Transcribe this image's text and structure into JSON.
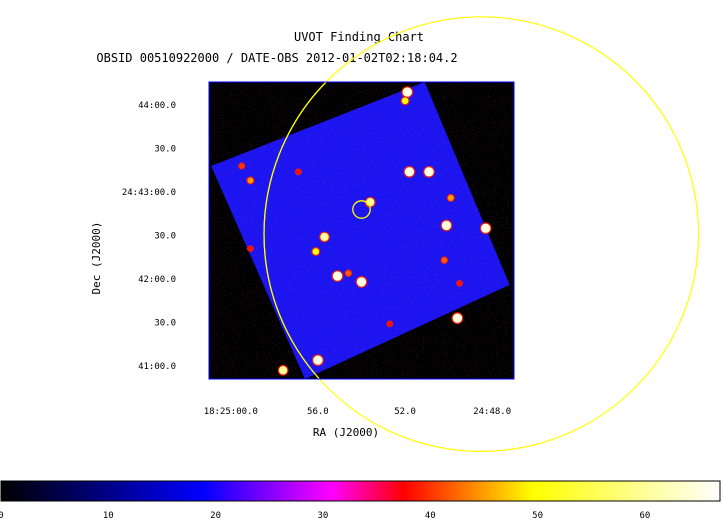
{
  "chart_data": {
    "type": "heatmap",
    "title": "UVOT Finding Chart",
    "subtitle": "OBSID 00510922000 / DATE-OBS 2012-01-02T02:18:04.2",
    "xlabel": "RA (J2000)",
    "ylabel": "Dec (J2000)",
    "x_ticks": [
      {
        "label": "18:25:00.0",
        "ra_sec": 60
      },
      {
        "label": "56.0",
        "ra_sec": 56
      },
      {
        "label": "52.0",
        "ra_sec": 52
      },
      {
        "label": "24:48.0",
        "ra_sec": 48
      }
    ],
    "y_ticks": [
      {
        "label": "44:00.0",
        "dec_sec": 240
      },
      {
        "label": "30.0",
        "dec_sec": 210
      },
      {
        "label": "24:43:00.0",
        "dec_sec": 180
      },
      {
        "label": "30.0",
        "dec_sec": 150
      },
      {
        "label": "42:00.0",
        "dec_sec": 120
      },
      {
        "label": "30.0",
        "dec_sec": 90
      },
      {
        "label": "41:00.0",
        "dec_sec": 60
      }
    ],
    "x_range_ra_sec": [
      61,
      47
    ],
    "y_range_dec_sec": [
      51,
      256
    ],
    "image_corners": [
      {
        "ra_sec": 60.9,
        "dec_sec": 198
      },
      {
        "ra_sec": 51.1,
        "dec_sec": 256
      },
      {
        "ra_sec": 47.2,
        "dec_sec": 116
      },
      {
        "ra_sec": 56.6,
        "dec_sec": 51
      }
    ],
    "sources": [
      {
        "ra_sec": 51.9,
        "dec_sec": 249,
        "brightness": 65
      },
      {
        "ra_sec": 52.0,
        "dec_sec": 243,
        "brightness": 50
      },
      {
        "ra_sec": 59.5,
        "dec_sec": 198,
        "brightness": 40
      },
      {
        "ra_sec": 59.1,
        "dec_sec": 188,
        "brightness": 45
      },
      {
        "ra_sec": 56.9,
        "dec_sec": 194,
        "brightness": 38
      },
      {
        "ra_sec": 51.8,
        "dec_sec": 194,
        "brightness": 65
      },
      {
        "ra_sec": 50.9,
        "dec_sec": 194,
        "brightness": 65
      },
      {
        "ra_sec": 49.9,
        "dec_sec": 176,
        "brightness": 45
      },
      {
        "ra_sec": 53.6,
        "dec_sec": 173,
        "brightness": 60
      },
      {
        "ra_sec": 50.1,
        "dec_sec": 157,
        "brightness": 65
      },
      {
        "ra_sec": 48.3,
        "dec_sec": 155,
        "brightness": 65
      },
      {
        "ra_sec": 55.7,
        "dec_sec": 149,
        "brightness": 60
      },
      {
        "ra_sec": 59.1,
        "dec_sec": 141,
        "brightness": 38
      },
      {
        "ra_sec": 56.1,
        "dec_sec": 139,
        "brightness": 50
      },
      {
        "ra_sec": 50.2,
        "dec_sec": 133,
        "brightness": 42
      },
      {
        "ra_sec": 55.1,
        "dec_sec": 122,
        "brightness": 65
      },
      {
        "ra_sec": 54.6,
        "dec_sec": 124,
        "brightness": 42
      },
      {
        "ra_sec": 54.0,
        "dec_sec": 118,
        "brightness": 65
      },
      {
        "ra_sec": 49.5,
        "dec_sec": 117,
        "brightness": 38
      },
      {
        "ra_sec": 49.6,
        "dec_sec": 93,
        "brightness": 65
      },
      {
        "ra_sec": 52.7,
        "dec_sec": 89,
        "brightness": 38
      },
      {
        "ra_sec": 56.0,
        "dec_sec": 64,
        "brightness": 65
      },
      {
        "ra_sec": 57.6,
        "dec_sec": 57,
        "brightness": 60
      }
    ],
    "target_circle": {
      "ra_sec": 54.0,
      "dec_sec": 168,
      "radius_arcsec": 5
    },
    "error_circle": {
      "ra_sec": 48.5,
      "dec_sec": 151,
      "radius_arcsec": 150
    },
    "colorbar": {
      "min": 0,
      "max": 67,
      "ticks": [
        0,
        10,
        20,
        30,
        40,
        50,
        60
      ]
    },
    "colors": {
      "background": "#000000",
      "frame": "#0000ff",
      "field": "#1a14f0",
      "circle": "#ffff00"
    }
  }
}
